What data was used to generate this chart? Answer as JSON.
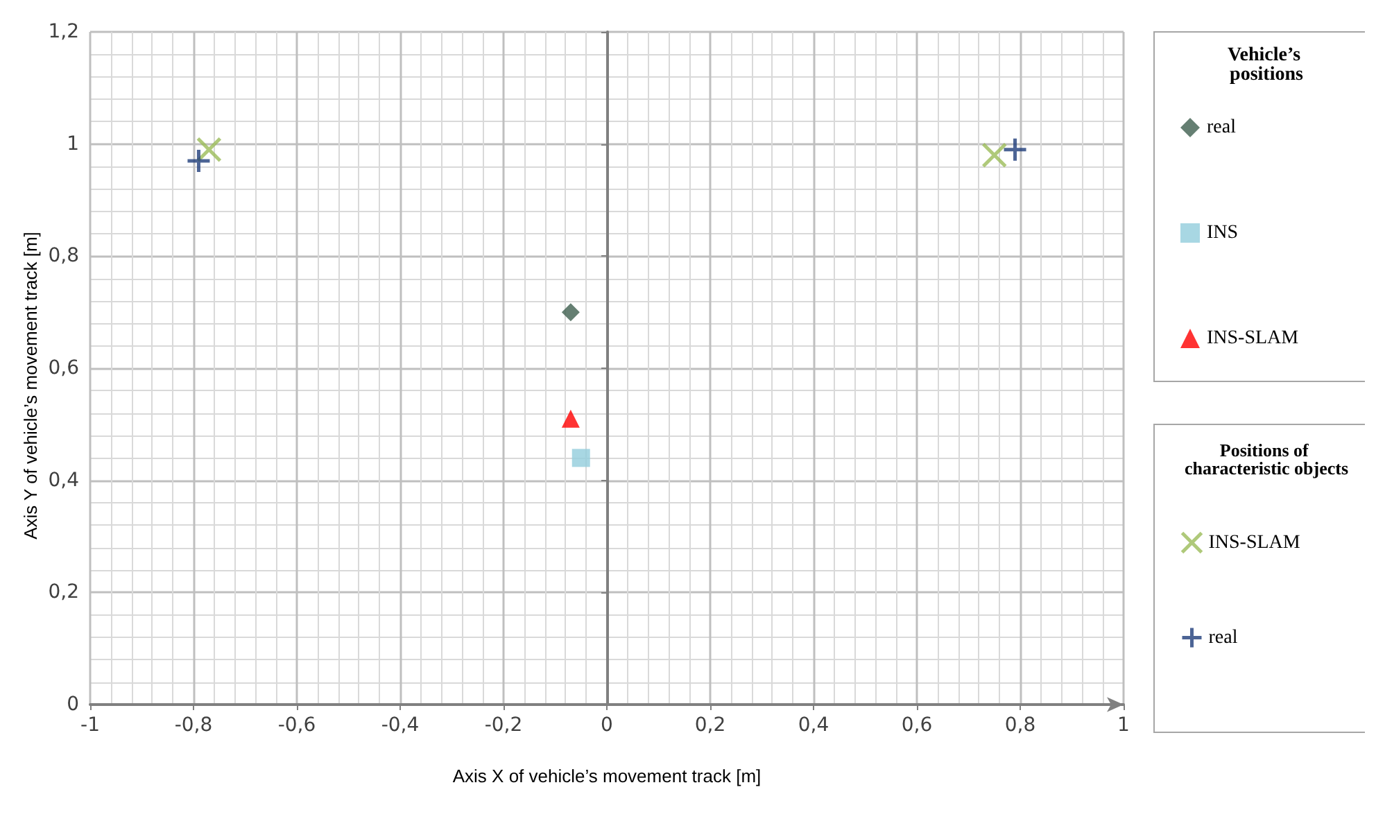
{
  "chart_data": {
    "type": "scatter",
    "xlabel": "Axis X of vehicle’s movement track [m]",
    "ylabel": "Axis Y of vehicle’s movement track [m]",
    "legend_title": "Vehicle’s positions",
    "annotations": [
      "Positions of characteristic objects"
    ],
    "xlim": [
      -1,
      1
    ],
    "xticks": [
      {
        "value": -1,
        "label": "-1"
      },
      {
        "value": -0.8,
        "label": "-0,8"
      },
      {
        "value": -0.6,
        "label": "-0,6"
      },
      {
        "value": -0.4,
        "label": "-0,4"
      },
      {
        "value": -0.2,
        "label": "-0,2"
      },
      {
        "value": 0,
        "label": "0"
      },
      {
        "value": 0.2,
        "label": "0,2"
      },
      {
        "value": 0.4,
        "label": "0,4"
      },
      {
        "value": 0.6,
        "label": "0,6"
      },
      {
        "value": 0.8,
        "label": "0,8"
      },
      {
        "value": 1,
        "label": "1"
      }
    ],
    "ylim": [
      0,
      1.2
    ],
    "yticks": [
      {
        "value": 0,
        "label": "0"
      },
      {
        "value": 0.2,
        "label": "0,2"
      },
      {
        "value": 0.4,
        "label": "0,4"
      },
      {
        "value": 0.6,
        "label": "0,6"
      },
      {
        "value": 0.8,
        "label": "0,8"
      },
      {
        "value": 1,
        "label": "1"
      },
      {
        "value": 1.2,
        "label": "1,2"
      }
    ],
    "grid": true,
    "legend": "right",
    "series": [
      {
        "name": "real",
        "color": "#3f5f4f",
        "marker": "diamond",
        "x": [
          -0.07
        ],
        "values": [
          0.7
        ]
      },
      {
        "name": "INS",
        "color": "#92cddc",
        "marker": "square",
        "x": [
          -0.05
        ],
        "values": [
          0.44
        ]
      },
      {
        "name": "INS-SLAM",
        "color": "#ff0000",
        "marker": "triangle",
        "x": [
          -0.07
        ],
        "values": [
          0.51
        ]
      },
      {
        "name": "INS-SLAM",
        "color": "#9bbb59",
        "marker": "cross",
        "x": [
          -0.77,
          0.75
        ],
        "values": [
          0.99,
          0.98
        ]
      },
      {
        "name": "real",
        "color": "#1f3d7a",
        "marker": "plus",
        "x": [
          -0.79,
          0.79
        ],
        "values": [
          0.97,
          0.99
        ]
      }
    ]
  }
}
